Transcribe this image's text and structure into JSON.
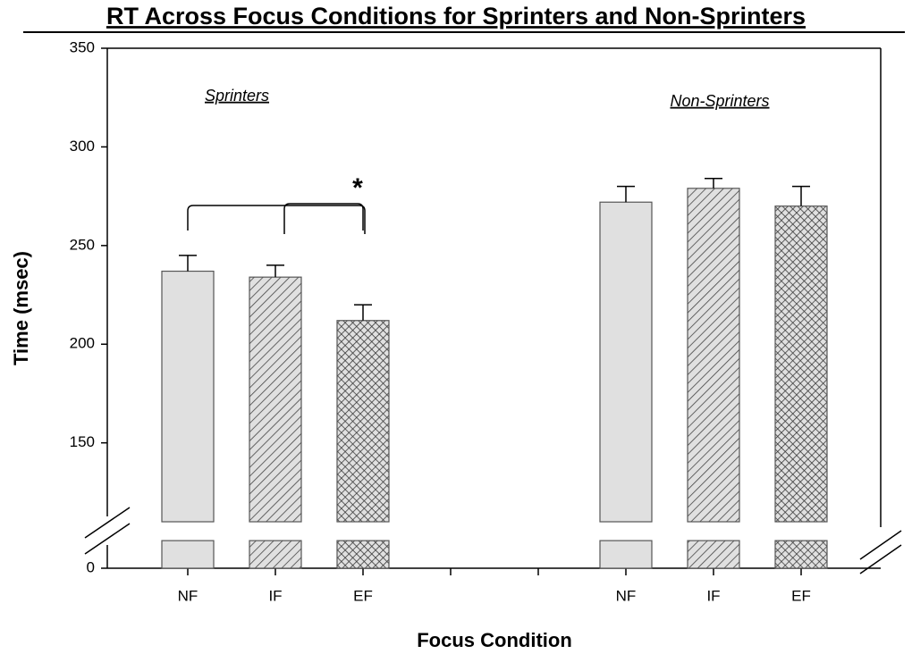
{
  "chart_data": {
    "type": "bar",
    "title": "RT Across Focus Conditions for Sprinters and Non-Sprinters",
    "xlabel": "Focus Condition",
    "ylabel": "Time (msec)",
    "categories": [
      "NF",
      "IF",
      "EF",
      null,
      null,
      "NF",
      "IF",
      "EF"
    ],
    "values": [
      237,
      234,
      212,
      null,
      null,
      272,
      279,
      270
    ],
    "errors": [
      8,
      6,
      8,
      null,
      null,
      8,
      5,
      10
    ],
    "patterns": [
      "solid",
      "hatch",
      "crosshatch",
      null,
      null,
      "solid",
      "hatch",
      "crosshatch"
    ],
    "color": "#e0e0e0",
    "ylim": [
      0,
      350
    ],
    "axis_break": [
      14,
      110
    ],
    "yticks": [
      0,
      150,
      200,
      250,
      300,
      350
    ],
    "group_labels": [
      "Sprinters",
      "Non-Sprinters"
    ],
    "annotation": "*"
  }
}
